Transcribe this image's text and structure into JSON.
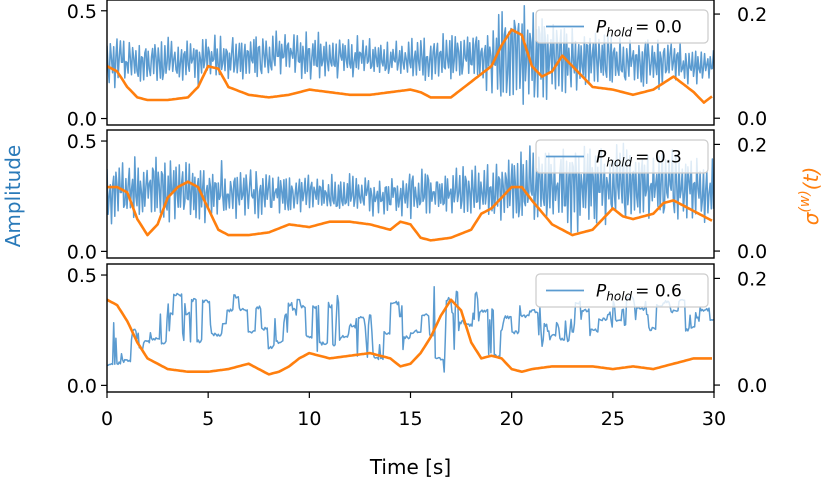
{
  "chart_data": [
    {
      "type": "line",
      "panel": "top",
      "legend": {
        "label": "P",
        "subscript": "hold",
        "value_text": "=  0.0",
        "placement": "top-right"
      },
      "xlim": [
        0,
        30
      ],
      "ylim_left": [
        -0.03,
        0.55
      ],
      "ylim_right": [
        -0.013,
        0.227
      ],
      "yticks_left": [
        "0.0",
        "0.5"
      ],
      "yticks_right": [
        "0.0",
        "0.2"
      ],
      "series": [
        {
          "name": "Amplitude",
          "axis": "left",
          "color": "#5b9bd0",
          "style": "oscillatory",
          "envelope_mean": [
            [
              0,
              0.27
            ],
            [
              3,
              0.26
            ],
            [
              6,
              0.27
            ],
            [
              9,
              0.3
            ],
            [
              12,
              0.28
            ],
            [
              15,
              0.27
            ],
            [
              18,
              0.29
            ],
            [
              20,
              0.3
            ],
            [
              22,
              0.28
            ],
            [
              25,
              0.27
            ],
            [
              28,
              0.26
            ],
            [
              30,
              0.25
            ]
          ],
          "envelope_amp": [
            [
              0,
              0.12
            ],
            [
              3,
              0.1
            ],
            [
              6,
              0.1
            ],
            [
              9,
              0.1
            ],
            [
              12,
              0.09
            ],
            [
              15,
              0.09
            ],
            [
              18,
              0.12
            ],
            [
              19.5,
              0.25
            ],
            [
              20.5,
              0.28
            ],
            [
              22,
              0.18
            ],
            [
              25,
              0.12
            ],
            [
              28,
              0.1
            ],
            [
              30,
              0.08
            ]
          ],
          "seed": 11
        },
        {
          "name": "σ(w)(t)",
          "axis": "right",
          "color": "#ff7f0e",
          "points": [
            [
              0,
              0.1
            ],
            [
              0.5,
              0.09
            ],
            [
              1,
              0.06
            ],
            [
              1.5,
              0.04
            ],
            [
              2,
              0.035
            ],
            [
              3,
              0.035
            ],
            [
              4,
              0.04
            ],
            [
              4.5,
              0.06
            ],
            [
              5,
              0.1
            ],
            [
              5.5,
              0.095
            ],
            [
              6,
              0.06
            ],
            [
              7,
              0.045
            ],
            [
              8,
              0.04
            ],
            [
              9,
              0.045
            ],
            [
              10,
              0.055
            ],
            [
              11,
              0.05
            ],
            [
              12,
              0.045
            ],
            [
              13,
              0.045
            ],
            [
              14,
              0.05
            ],
            [
              15,
              0.055
            ],
            [
              15.5,
              0.05
            ],
            [
              16,
              0.04
            ],
            [
              17,
              0.04
            ],
            [
              18,
              0.07
            ],
            [
              19,
              0.1
            ],
            [
              19.5,
              0.14
            ],
            [
              20,
              0.17
            ],
            [
              20.5,
              0.16
            ],
            [
              21,
              0.1
            ],
            [
              21.5,
              0.08
            ],
            [
              22,
              0.09
            ],
            [
              22.5,
              0.12
            ],
            [
              23,
              0.1
            ],
            [
              24,
              0.06
            ],
            [
              25,
              0.055
            ],
            [
              26,
              0.045
            ],
            [
              27,
              0.055
            ],
            [
              28,
              0.08
            ],
            [
              29,
              0.05
            ],
            [
              29.5,
              0.03
            ],
            [
              30,
              0.045
            ]
          ]
        }
      ]
    },
    {
      "type": "line",
      "panel": "middle",
      "legend": {
        "label": "P",
        "subscript": "hold",
        "value_text": "=  0.3",
        "placement": "top-right"
      },
      "xlim": [
        0,
        30
      ],
      "ylim_left": [
        -0.03,
        0.55
      ],
      "ylim_right": [
        -0.013,
        0.227
      ],
      "yticks_left": [
        "0.0",
        "0.5"
      ],
      "yticks_right": [
        "0.0",
        "0.2"
      ],
      "series": [
        {
          "name": "Amplitude",
          "axis": "left",
          "color": "#5b9bd0",
          "style": "oscillatory",
          "envelope_mean": [
            [
              0,
              0.27
            ],
            [
              3,
              0.28
            ],
            [
              6,
              0.27
            ],
            [
              9,
              0.26
            ],
            [
              12,
              0.25
            ],
            [
              15,
              0.26
            ],
            [
              18,
              0.27
            ],
            [
              20,
              0.28
            ],
            [
              23,
              0.3
            ],
            [
              26,
              0.3
            ],
            [
              30,
              0.28
            ]
          ],
          "envelope_amp": [
            [
              0,
              0.15
            ],
            [
              3,
              0.16
            ],
            [
              5,
              0.14
            ],
            [
              7,
              0.1
            ],
            [
              10,
              0.09
            ],
            [
              13,
              0.08
            ],
            [
              16,
              0.1
            ],
            [
              19,
              0.14
            ],
            [
              21,
              0.2
            ],
            [
              24,
              0.2
            ],
            [
              27,
              0.18
            ],
            [
              30,
              0.14
            ]
          ],
          "seed": 23
        },
        {
          "name": "σ(w)(t)",
          "axis": "right",
          "color": "#ff7f0e",
          "points": [
            [
              0,
              0.12
            ],
            [
              0.5,
              0.12
            ],
            [
              1,
              0.11
            ],
            [
              1.5,
              0.06
            ],
            [
              2,
              0.03
            ],
            [
              2.5,
              0.05
            ],
            [
              3,
              0.1
            ],
            [
              3.5,
              0.12
            ],
            [
              4,
              0.13
            ],
            [
              4.5,
              0.12
            ],
            [
              5,
              0.08
            ],
            [
              5.5,
              0.04
            ],
            [
              6,
              0.03
            ],
            [
              7,
              0.03
            ],
            [
              8,
              0.035
            ],
            [
              9,
              0.05
            ],
            [
              10,
              0.045
            ],
            [
              11,
              0.055
            ],
            [
              12,
              0.055
            ],
            [
              13,
              0.05
            ],
            [
              14,
              0.04
            ],
            [
              14.5,
              0.055
            ],
            [
              15,
              0.05
            ],
            [
              15.5,
              0.025
            ],
            [
              16,
              0.02
            ],
            [
              17,
              0.025
            ],
            [
              18,
              0.04
            ],
            [
              18.5,
              0.07
            ],
            [
              19,
              0.08
            ],
            [
              20,
              0.12
            ],
            [
              20.5,
              0.12
            ],
            [
              21,
              0.095
            ],
            [
              22,
              0.05
            ],
            [
              22.5,
              0.04
            ],
            [
              23,
              0.03
            ],
            [
              24,
              0.04
            ],
            [
              24.5,
              0.06
            ],
            [
              25,
              0.08
            ],
            [
              25.5,
              0.065
            ],
            [
              26,
              0.06
            ],
            [
              27,
              0.07
            ],
            [
              27.5,
              0.09
            ],
            [
              28,
              0.095
            ],
            [
              28.5,
              0.085
            ],
            [
              29,
              0.075
            ],
            [
              30,
              0.055
            ]
          ]
        }
      ]
    },
    {
      "type": "line",
      "panel": "bottom",
      "legend": {
        "label": "P",
        "subscript": "hold",
        "value_text": "=  0.6",
        "placement": "top-right"
      },
      "xlim": [
        0,
        30
      ],
      "ylim_left": [
        -0.03,
        0.55
      ],
      "ylim_right": [
        -0.013,
        0.227
      ],
      "yticks_left": [
        "0.0",
        "0.5"
      ],
      "yticks_right": [
        "0.0",
        "0.2"
      ],
      "xticks": [
        "0",
        "5",
        "10",
        "15",
        "20",
        "25",
        "30"
      ],
      "xlabel": "Time [s]",
      "series": [
        {
          "name": "Amplitude",
          "axis": "left",
          "color": "#5b9bd0",
          "style": "step-hold",
          "envelope_mean": [
            [
              0,
              0.25
            ],
            [
              3,
              0.3
            ],
            [
              6,
              0.3
            ],
            [
              9,
              0.28
            ],
            [
              12,
              0.27
            ],
            [
              15,
              0.26
            ],
            [
              17,
              0.25
            ],
            [
              20,
              0.24
            ],
            [
              23,
              0.3
            ],
            [
              26,
              0.32
            ],
            [
              30,
              0.32
            ]
          ],
          "envelope_amp": [
            [
              0,
              0.22
            ],
            [
              2,
              0.12
            ],
            [
              5,
              0.1
            ],
            [
              8,
              0.12
            ],
            [
              12,
              0.14
            ],
            [
              15,
              0.16
            ],
            [
              17,
              0.22
            ],
            [
              19,
              0.14
            ],
            [
              22,
              0.1
            ],
            [
              26,
              0.08
            ],
            [
              30,
              0.08
            ]
          ],
          "seed": 37
        },
        {
          "name": "σ(w)(t)",
          "axis": "right",
          "color": "#ff7f0e",
          "points": [
            [
              0,
              0.16
            ],
            [
              0.5,
              0.15
            ],
            [
              1,
              0.12
            ],
            [
              1.5,
              0.08
            ],
            [
              2,
              0.05
            ],
            [
              2.5,
              0.04
            ],
            [
              3,
              0.03
            ],
            [
              4,
              0.025
            ],
            [
              5,
              0.025
            ],
            [
              6,
              0.03
            ],
            [
              7,
              0.04
            ],
            [
              7.5,
              0.03
            ],
            [
              8,
              0.02
            ],
            [
              8.5,
              0.025
            ],
            [
              9,
              0.035
            ],
            [
              9.5,
              0.05
            ],
            [
              10,
              0.06
            ],
            [
              11,
              0.05
            ],
            [
              12,
              0.055
            ],
            [
              13,
              0.06
            ],
            [
              14,
              0.05
            ],
            [
              14.5,
              0.035
            ],
            [
              15,
              0.04
            ],
            [
              15.5,
              0.06
            ],
            [
              16,
              0.09
            ],
            [
              16.5,
              0.13
            ],
            [
              17,
              0.16
            ],
            [
              17.5,
              0.14
            ],
            [
              18,
              0.08
            ],
            [
              18.5,
              0.05
            ],
            [
              19,
              0.055
            ],
            [
              19.5,
              0.05
            ],
            [
              20,
              0.03
            ],
            [
              20.5,
              0.025
            ],
            [
              21,
              0.03
            ],
            [
              22,
              0.035
            ],
            [
              23,
              0.035
            ],
            [
              24,
              0.035
            ],
            [
              25,
              0.03
            ],
            [
              26,
              0.035
            ],
            [
              27,
              0.03
            ],
            [
              28,
              0.04
            ],
            [
              29,
              0.05
            ],
            [
              30,
              0.05
            ]
          ]
        }
      ]
    }
  ],
  "labels": {
    "ylabel_left": "Amplitude",
    "ylabel_right_main": "σ",
    "ylabel_right_sup": "(w)",
    "ylabel_right_arg": "(t)"
  },
  "colors": {
    "amplitude": "#5b9bd0",
    "sigma": "#ff7f0e",
    "ylabel_left": "#2a7ab9",
    "ylabel_right": "#ff7f0e"
  }
}
